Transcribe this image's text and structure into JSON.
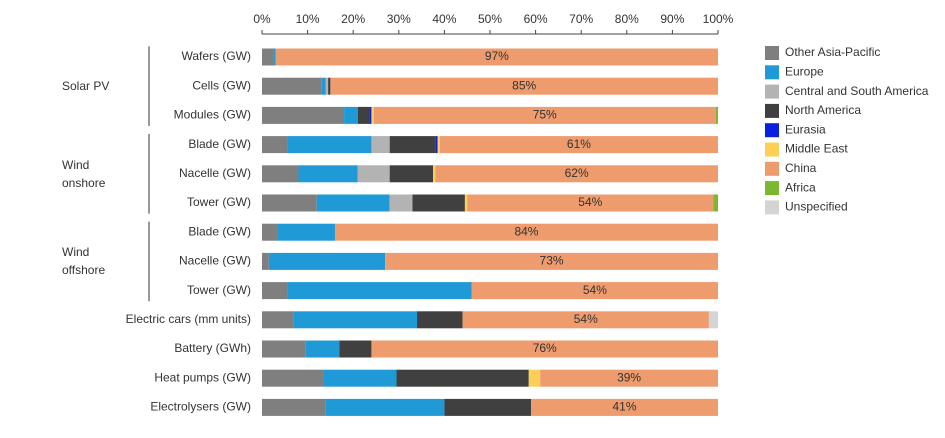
{
  "chart_data": {
    "type": "stacked_bar",
    "orientation": "horizontal",
    "categories": [
      "Wafers (GW)",
      "Cells (GW)",
      "Modules (GW)",
      "Blade (GW)",
      "Nacelle (GW)",
      "Tower (GW)",
      "Blade (GW)",
      "Nacelle (GW)",
      "Tower (GW)",
      "Electric cars (mm units)",
      "Battery (GWh)",
      "Heat pumps (GW)",
      "Electrolysers (GW)"
    ],
    "groups": [
      {
        "label": "Solar PV",
        "size": 3
      },
      {
        "label": "Wind onshore",
        "size": 3
      },
      {
        "label": "Wind offshore",
        "size": 3
      }
    ],
    "series": [
      {
        "name": "Other Asia-Pacific",
        "color": "#7f7f7f",
        "values": [
          2.5,
          13,
          18,
          5.5,
          8,
          12,
          3.5,
          1.5,
          5.5,
          7,
          9.5,
          13.5,
          14
        ]
      },
      {
        "name": "Europe",
        "color": "#1f9ad6",
        "values": [
          0.5,
          1,
          3,
          18.5,
          13,
          16,
          12.5,
          25.5,
          40.5,
          27,
          7.5,
          16,
          26
        ]
      },
      {
        "name": "Central and South America",
        "color": "#b3b3b3",
        "values": [
          0,
          0.5,
          0,
          4,
          7,
          5,
          0,
          0,
          0,
          0,
          0,
          0,
          0
        ]
      },
      {
        "name": "North America",
        "color": "#404040",
        "values": [
          0,
          0.5,
          2.5,
          10,
          9.5,
          11.5,
          0,
          0,
          0,
          10,
          7,
          29,
          19
        ]
      },
      {
        "name": "Eurasia",
        "color": "#0a1fe0",
        "values": [
          0,
          0,
          0.5,
          0.5,
          0,
          0,
          0,
          0,
          0,
          0,
          0,
          0,
          0
        ]
      },
      {
        "name": "Middle East",
        "color": "#fdd055",
        "values": [
          0,
          0,
          0.5,
          0.5,
          0.5,
          0.5,
          0,
          0,
          0,
          0,
          0,
          2.5,
          0
        ]
      },
      {
        "name": "China",
        "color": "#ee9b6d",
        "values": [
          97,
          85,
          75,
          61,
          62,
          54,
          84,
          73,
          54,
          54,
          76,
          39,
          41
        ],
        "value_labels": [
          "97%",
          "85%",
          "75%",
          "61%",
          "62%",
          "54%",
          "84%",
          "73%",
          "54%",
          "54%",
          "76%",
          "39%",
          "41%"
        ]
      },
      {
        "name": "Africa",
        "color": "#7cb82f",
        "values": [
          0,
          0,
          0.5,
          0,
          0,
          1,
          0,
          0,
          0,
          0,
          0,
          0,
          0
        ]
      },
      {
        "name": "Unspecified",
        "color": "#d4d4d4",
        "values": [
          0,
          0,
          0,
          0,
          0,
          0,
          0,
          0,
          0,
          2,
          0,
          0,
          0
        ]
      }
    ],
    "xlim": [
      0,
      100
    ],
    "xticks": [
      {
        "value": 0,
        "label": "0%"
      },
      {
        "value": 10,
        "label": "10%"
      },
      {
        "value": 20,
        "label": "20%"
      },
      {
        "value": 30,
        "label": "30%"
      },
      {
        "value": 40,
        "label": "40%"
      },
      {
        "value": 50,
        "label": "50%"
      },
      {
        "value": 60,
        "label": "60%"
      },
      {
        "value": 70,
        "label": "70%"
      },
      {
        "value": 80,
        "label": "80%"
      },
      {
        "value": 90,
        "label": "90%"
      },
      {
        "value": 100,
        "label": "100%"
      }
    ],
    "grid": false,
    "legend": "right"
  }
}
